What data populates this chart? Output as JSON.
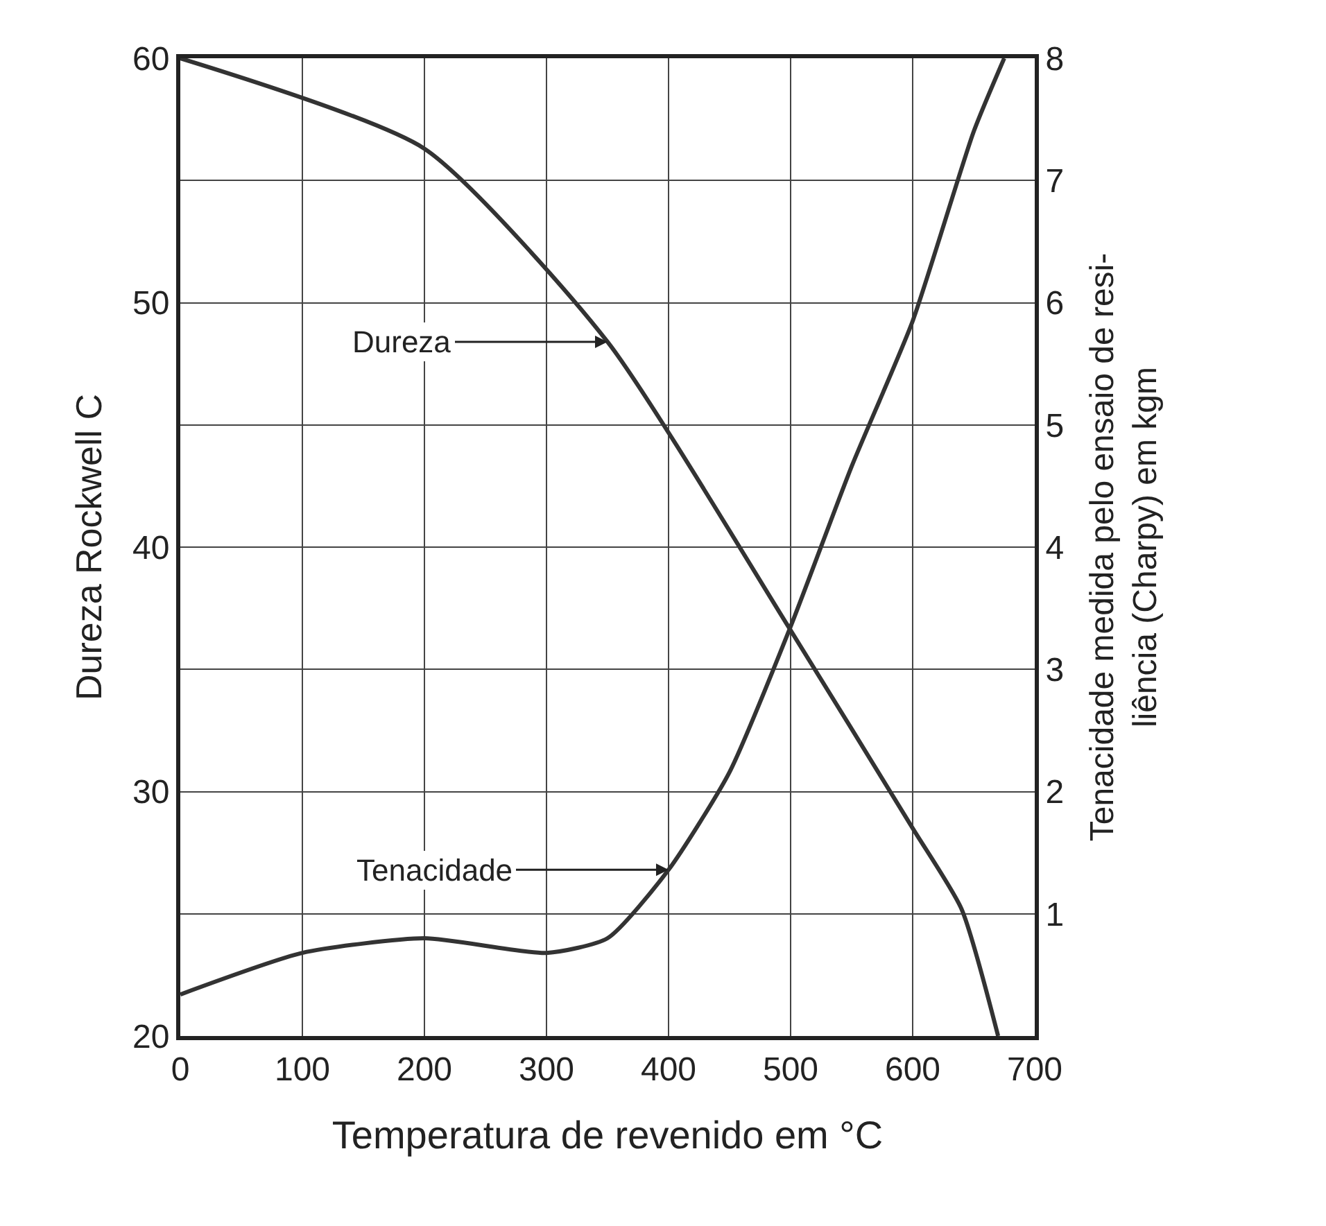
{
  "chart_data": {
    "type": "line",
    "xlabel": "Temperatura de revenido em °C",
    "ylabel": "Dureza Rockwell C",
    "y2label": "Tenacidade medida pelo ensaio de resi-\nliência (Charpy) em kgm",
    "series": [
      {
        "color": "#333333",
        "x": [
          0,
          200,
          350,
          500,
          600,
          640,
          670
        ],
        "values": [
          60,
          56.3,
          48.4,
          36.6,
          28.5,
          25.2,
          20
        ]
      },
      {
        "color": "#333333",
        "axis": "y2",
        "x": [
          0,
          100,
          200,
          300,
          350,
          400,
          450,
          500,
          550,
          600,
          650,
          675
        ],
        "values": [
          0.34,
          0.68,
          0.8,
          0.68,
          0.8,
          1.36,
          2.16,
          3.35,
          4.66,
          5.85,
          7.4,
          8
        ]
      }
    ],
    "xlim": [
      0,
      700
    ],
    "xticks": [
      0,
      100,
      200,
      300,
      400,
      500,
      600,
      700
    ],
    "ylim": [
      20,
      60
    ],
    "yticks": [
      20,
      {
        "value": 25,
        "label": null
      },
      30,
      {
        "value": 35,
        "label": null
      },
      40,
      {
        "value": 45,
        "label": null
      },
      50,
      {
        "value": 55,
        "label": null
      },
      60
    ],
    "y2lim": [
      0,
      8
    ],
    "y2ticks": [
      1,
      2,
      3,
      4,
      5,
      6,
      7,
      8
    ],
    "annotations": [
      {
        "text": "Dureza",
        "x": 350,
        "y": 48.4
      },
      {
        "text": "Tenacidade",
        "x": 400,
        "y": 26.8
      }
    ],
    "grid": true,
    "line_style": "solid",
    "marker": "none"
  }
}
